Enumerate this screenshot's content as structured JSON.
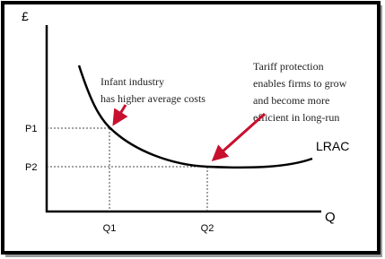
{
  "axes": {
    "y_label": "£",
    "x_label": "Q"
  },
  "price_ticks": [
    "P1",
    "P2"
  ],
  "quantity_ticks": [
    "Q1",
    "Q2"
  ],
  "curve_label": "LRAC",
  "annotations": [
    {
      "lines": [
        "Infant industry",
        "has higher average costs"
      ]
    },
    {
      "lines": [
        "Tariff protection",
        "enables firms to grow",
        "and become more",
        "efficient in long-run"
      ]
    }
  ]
}
